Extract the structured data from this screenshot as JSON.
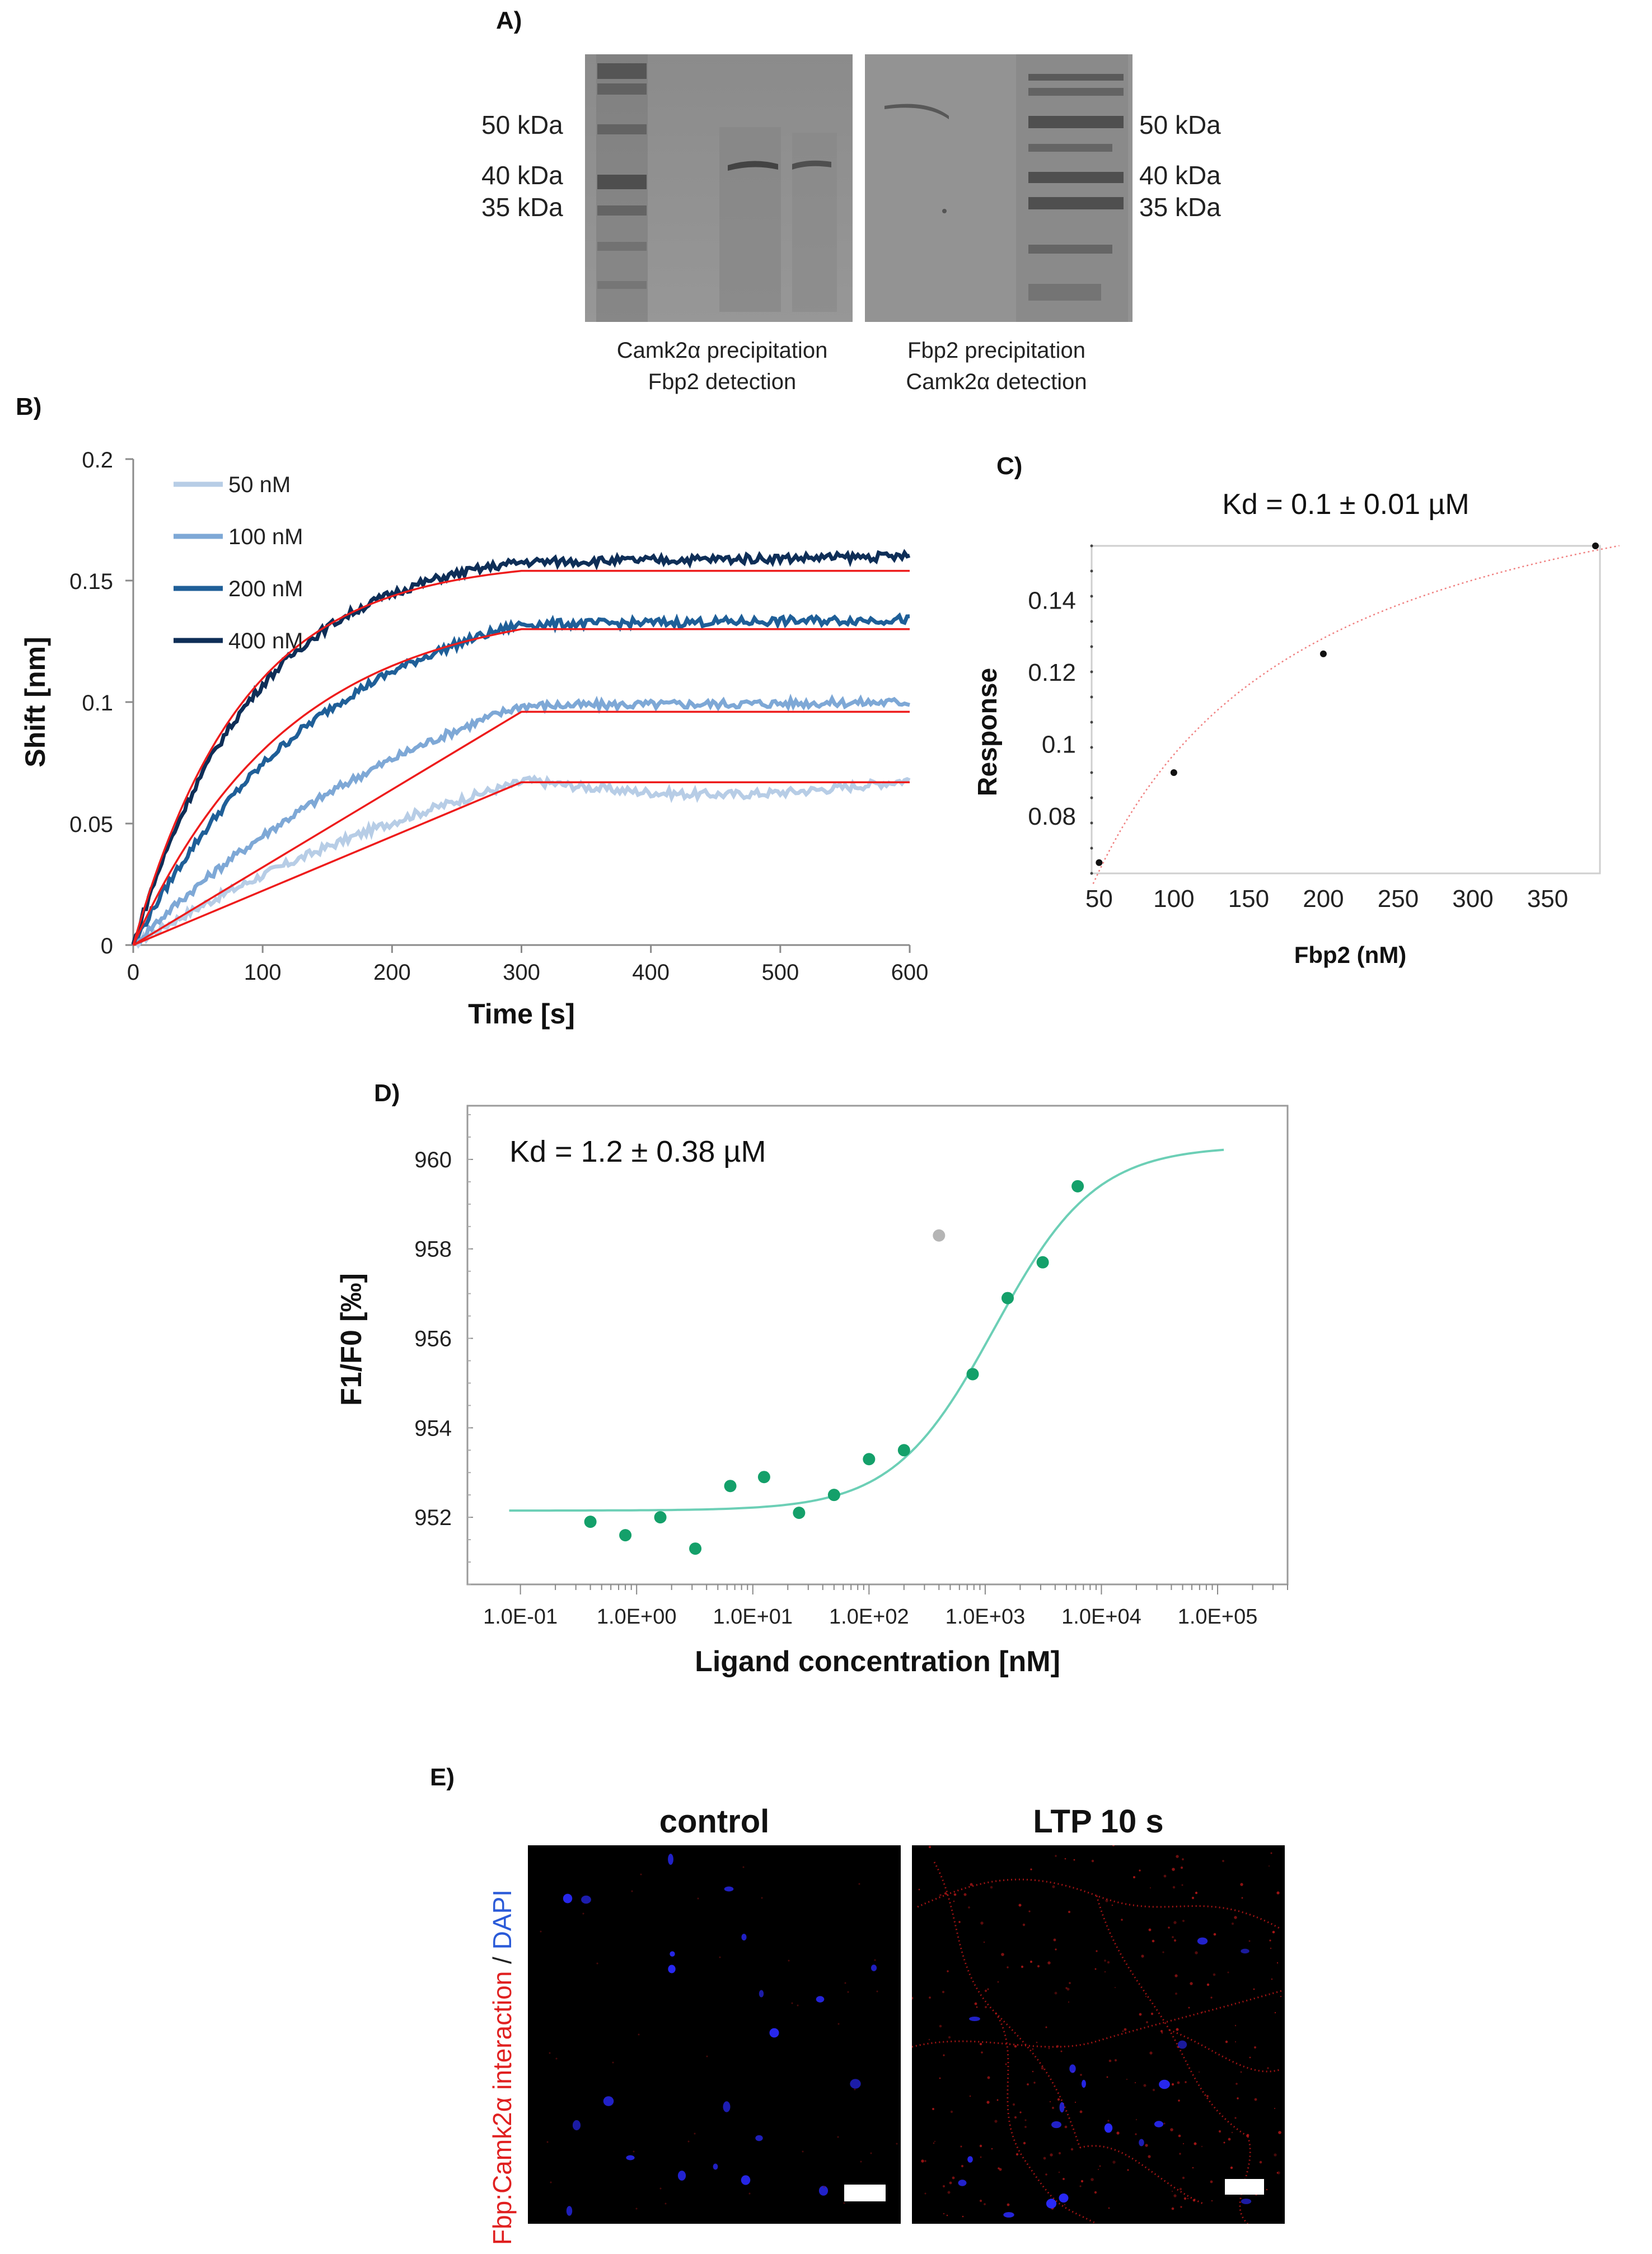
{
  "panel_labels": {
    "a": "A)",
    "b": "B)",
    "c": "C)",
    "d": "D)",
    "e": "E)"
  },
  "panel_a": {
    "left_markers": [
      "50 kDa",
      "40 kDa",
      "35 kDa"
    ],
    "right_markers": [
      "50 kDa",
      "40 kDa",
      "35 kDa"
    ],
    "left_caption": [
      "Camk2α precipitation",
      "Fbp2 detection"
    ],
    "right_caption": [
      "Fbp2 precipitation",
      "Camk2α detection"
    ]
  },
  "chart_data": [
    {
      "id": "B",
      "type": "line",
      "title": "",
      "xlabel": "Time [s]",
      "ylabel": "Shift [nm]",
      "xlim": [
        0,
        600
      ],
      "ylim": [
        0,
        0.2
      ],
      "xticks": [
        "0",
        "100",
        "200",
        "300",
        "400",
        "500",
        "600"
      ],
      "yticks": [
        "0",
        "0.05",
        "0.1",
        "0.15",
        "0.2"
      ],
      "legend_position": "top-left",
      "series": [
        {
          "name": "50 nM",
          "color": "#b7cde6",
          "plateau": 0.068,
          "fit_plateau": 0.067,
          "fit": "linear"
        },
        {
          "name": "100 nM",
          "color": "#7ea8d6",
          "plateau": 0.1,
          "fit_plateau": 0.096,
          "fit": "linear"
        },
        {
          "name": "200 nM",
          "color": "#1f5f98",
          "plateau": 0.134,
          "fit_plateau": 0.13,
          "fit": "exponential"
        },
        {
          "name": "400 nM",
          "color": "#0e2e57",
          "plateau": 0.16,
          "fit_plateau": 0.154,
          "fit": "exponential"
        }
      ],
      "fit_color": "#ee1c1c",
      "association_end": 300
    },
    {
      "id": "C",
      "type": "scatter",
      "title": "Kd = 0.1 ± 0.01 µM",
      "xlabel": "Fbp2 (nM)",
      "ylabel": "Response",
      "xlim": [
        45,
        385
      ],
      "ylim": [
        0.064,
        0.155
      ],
      "xticks": [
        "50",
        "100",
        "150",
        "200",
        "250",
        "300",
        "350"
      ],
      "yticks": [
        "0.08",
        "0.1",
        "0.12",
        "0.14"
      ],
      "points": [
        {
          "x": 50,
          "y": 0.067
        },
        {
          "x": 100,
          "y": 0.092
        },
        {
          "x": 200,
          "y": 0.125
        },
        {
          "x": 400,
          "y": 0.155
        }
      ],
      "fit": {
        "kd_nM": 100,
        "bmax": 0.194,
        "color": "#f08080"
      }
    },
    {
      "id": "D",
      "type": "scatter",
      "title": "Kd = 1.2 ± 0.38 µM",
      "xlabel": "Ligand concentration [nM]",
      "ylabel": "F1/F0 [‰]",
      "xscale": "log",
      "xlim": [
        0.035,
        400000
      ],
      "ylim": [
        950.5,
        961.2
      ],
      "xticks": [
        "1.0E-01",
        "1.0E+00",
        "1.0E+01",
        "1.0E+02",
        "1.0E+03",
        "1.0E+04",
        "1.0E+05"
      ],
      "yticks": [
        "952",
        "954",
        "956",
        "958",
        "960"
      ],
      "points": [
        {
          "x": 0.4,
          "y": 951.9
        },
        {
          "x": 0.8,
          "y": 951.6
        },
        {
          "x": 1.6,
          "y": 952.0
        },
        {
          "x": 3.2,
          "y": 951.3
        },
        {
          "x": 6.4,
          "y": 952.7
        },
        {
          "x": 12.5,
          "y": 952.9
        },
        {
          "x": 25,
          "y": 952.1
        },
        {
          "x": 50,
          "y": 952.5
        },
        {
          "x": 100,
          "y": 953.3
        },
        {
          "x": 200,
          "y": 953.5
        },
        {
          "x": 780,
          "y": 955.2
        },
        {
          "x": 1560,
          "y": 956.9
        },
        {
          "x": 3125,
          "y": 957.7
        },
        {
          "x": 6250,
          "y": 959.4
        }
      ],
      "outlier": {
        "x": 400,
        "y": 958.3
      },
      "fit": {
        "kd_nM": 1200,
        "bottom": 952.15,
        "top": 960.3,
        "xmin": 0.08,
        "xmax": 120000,
        "color": "#6ccfb6"
      },
      "point_color": "#14a06a",
      "outlier_color": "#b5b5b5"
    }
  ],
  "panel_e": {
    "ylabel_red": "Fbp:Camk2α interaction",
    "ylabel_sep": " / ",
    "ylabel_blue": "DAPI",
    "titles": [
      "control",
      "LTP 10 s"
    ]
  }
}
